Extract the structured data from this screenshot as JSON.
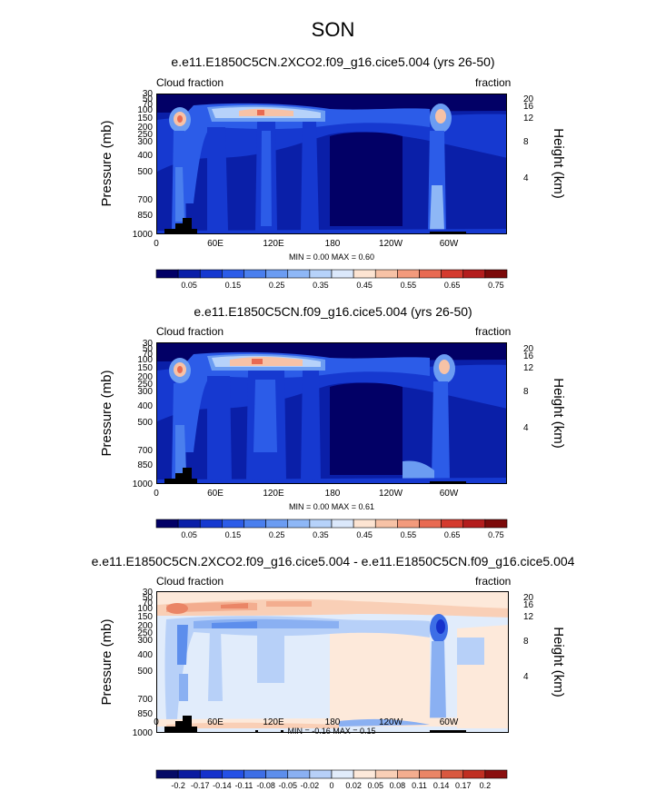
{
  "page": {
    "title": "SON"
  },
  "chart_data": [
    {
      "type": "heatmap",
      "title": "e.e11.E1850C5CN.2XCO2.f09_g16.cice5.004 (yrs 26-50)",
      "left_label": "Cloud fraction",
      "right_label": "fraction",
      "ylabel": "Pressure (mb)",
      "y2label": "Height (km)",
      "x_ticks": [
        "0",
        "60E",
        "120E",
        "180",
        "120W",
        "60W"
      ],
      "y_ticks": [
        "30",
        "50",
        "70",
        "100",
        "150",
        "200",
        "250",
        "300",
        "400",
        "500",
        "700",
        "850",
        "1000"
      ],
      "y2_ticks": [
        "20",
        "16",
        "12",
        "8",
        "4"
      ],
      "min_max": "MIN =   0.00  MAX =   0.60",
      "colorbar_labels": [
        "0.05",
        "0.15",
        "0.25",
        "0.35",
        "0.45",
        "0.55",
        "0.65",
        "0.75"
      ],
      "colorbar_colors": [
        "#020066",
        "#0a1fa8",
        "#1639d0",
        "#2c5ce8",
        "#4a7fee",
        "#6b9cf2",
        "#8eb7f6",
        "#b6d2fa",
        "#dbe8fb",
        "#fde4d2",
        "#f7c2a6",
        "#f39a7c",
        "#e86a52",
        "#d43a2e",
        "#b31d1d",
        "#7c0a0a"
      ]
    },
    {
      "type": "heatmap",
      "title": "e.e11.E1850C5CN.f09_g16.cice5.004 (yrs 26-50)",
      "left_label": "Cloud fraction",
      "right_label": "fraction",
      "ylabel": "Pressure (mb)",
      "y2label": "Height (km)",
      "x_ticks": [
        "0",
        "60E",
        "120E",
        "180",
        "120W",
        "60W"
      ],
      "y_ticks": [
        "30",
        "50",
        "70",
        "100",
        "150",
        "200",
        "250",
        "300",
        "400",
        "500",
        "700",
        "850",
        "1000"
      ],
      "y2_ticks": [
        "20",
        "16",
        "12",
        "8",
        "4"
      ],
      "min_max": "MIN =   0.00  MAX =   0.61",
      "colorbar_labels": [
        "0.05",
        "0.15",
        "0.25",
        "0.35",
        "0.45",
        "0.55",
        "0.65",
        "0.75"
      ],
      "colorbar_colors": [
        "#020066",
        "#0a1fa8",
        "#1639d0",
        "#2c5ce8",
        "#4a7fee",
        "#6b9cf2",
        "#8eb7f6",
        "#b6d2fa",
        "#dbe8fb",
        "#fde4d2",
        "#f7c2a6",
        "#f39a7c",
        "#e86a52",
        "#d43a2e",
        "#b31d1d",
        "#7c0a0a"
      ]
    },
    {
      "type": "heatmap",
      "title": "e.e11.E1850C5CN.2XCO2.f09_g16.cice5.004 - e.e11.E1850C5CN.f09_g16.cice5.004",
      "left_label": "Cloud fraction",
      "right_label": "fraction",
      "ylabel": "Pressure (mb)",
      "y2label": "Height (km)",
      "x_ticks": [
        "0",
        "60E",
        "120E",
        "180",
        "120W",
        "60W"
      ],
      "y_ticks": [
        "30",
        "50",
        "70",
        "100",
        "150",
        "200",
        "250",
        "300",
        "400",
        "500",
        "700",
        "850",
        "1000"
      ],
      "y2_ticks": [
        "20",
        "16",
        "12",
        "8",
        "4"
      ],
      "min_max": "MIN =  -0.16  MAX =   0.15",
      "colorbar_labels": [
        "-0.2",
        "-0.17",
        "-0.14",
        "-0.11",
        "-0.08",
        "-0.05",
        "-0.02",
        "0",
        "0.02",
        "0.05",
        "0.08",
        "0.11",
        "0.14",
        "0.17",
        "0.2"
      ],
      "colorbar_colors": [
        "#050a66",
        "#0b1aa0",
        "#1531cc",
        "#2450e6",
        "#3d6ee6",
        "#5d8eec",
        "#8ab0f2",
        "#b7d0f8",
        "#e1ecfb",
        "#fde9da",
        "#f9cfb6",
        "#f3ad8f",
        "#ea8566",
        "#d9583f",
        "#c02f22",
        "#8a0e0e"
      ]
    }
  ]
}
